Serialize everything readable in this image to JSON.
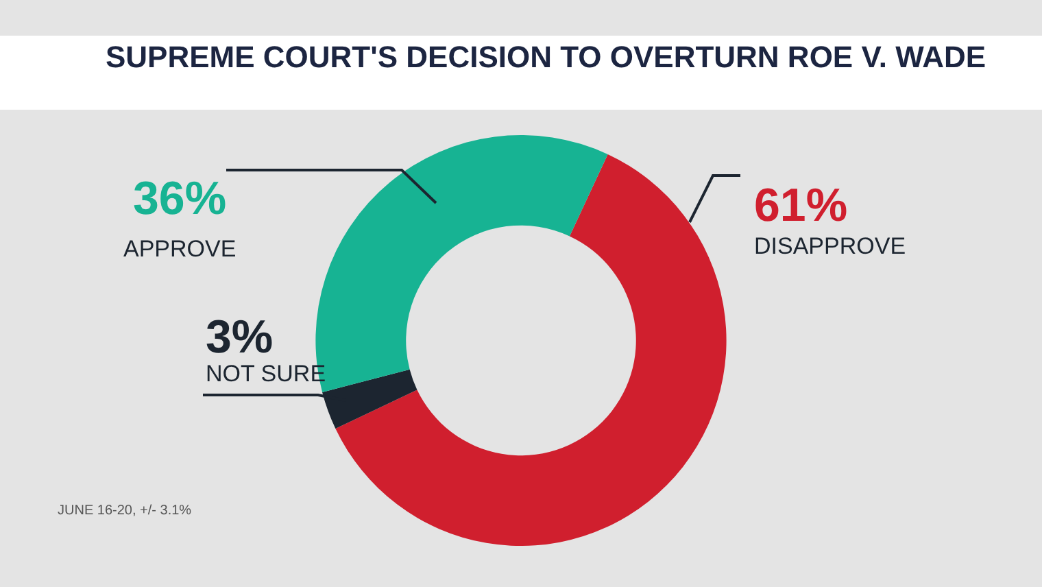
{
  "chart_data": {
    "type": "donut",
    "title": "SUPREME COURT'S DECISION TO OVERTURN ROE V. WADE",
    "categories": [
      "DISAPPROVE",
      "NOT SURE",
      "APPROVE"
    ],
    "values": [
      61,
      3,
      36
    ],
    "value_labels": [
      "61%",
      "3%",
      "36%"
    ],
    "colors": [
      "#d01f2e",
      "#1c2530",
      "#17b393"
    ],
    "legend": false,
    "annotations": [
      "JUNE 16-20, +/- 3.1%"
    ]
  }
}
